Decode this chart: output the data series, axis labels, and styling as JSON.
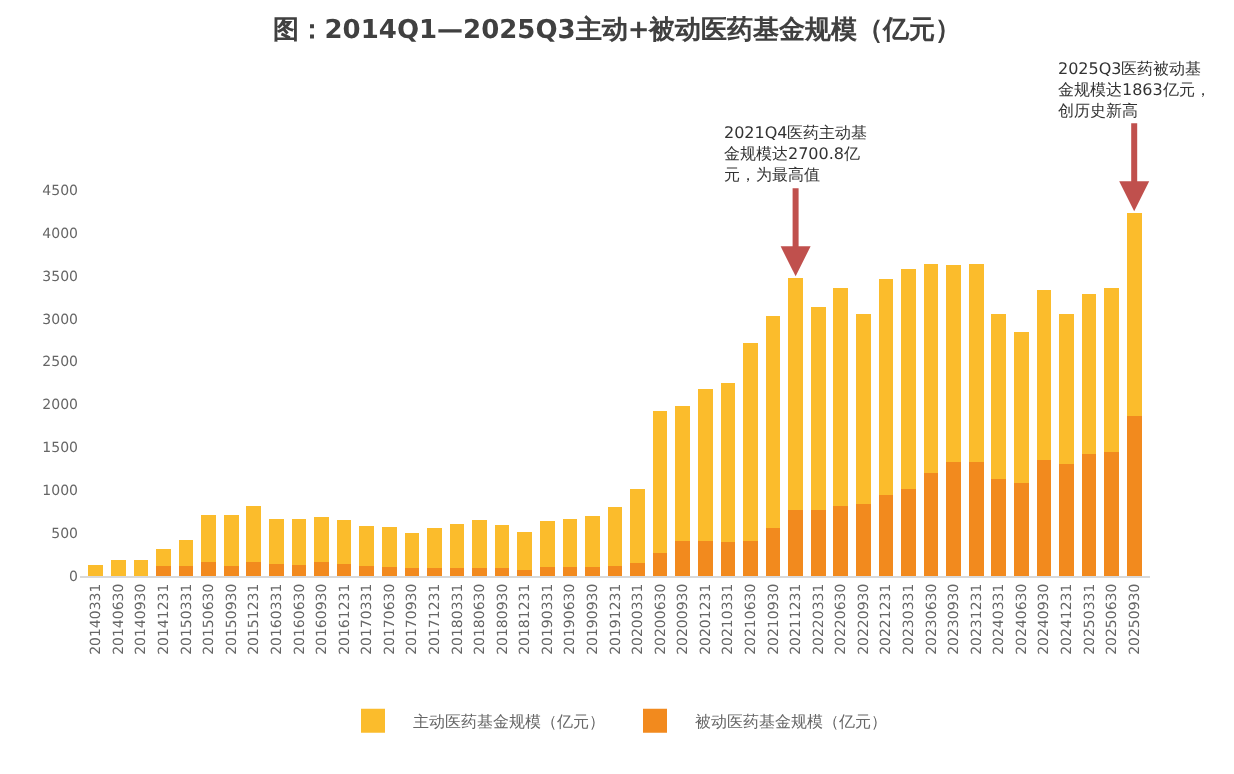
{
  "chart_data": {
    "type": "bar",
    "title": "图：2014Q1—2025Q3主动+被动医药基金规模（亿元）",
    "stacked": true,
    "legend": "bottom",
    "categories": [
      "20140331",
      "20140630",
      "20140930",
      "20141231",
      "20150331",
      "20150630",
      "20150930",
      "20151231",
      "20160331",
      "20160630",
      "20160930",
      "20161231",
      "20170331",
      "20170630",
      "20170930",
      "20171231",
      "20180331",
      "20180630",
      "20180930",
      "20181231",
      "20190331",
      "20190630",
      "20190930",
      "20191231",
      "20200331",
      "20200630",
      "20200930",
      "20201231",
      "20210331",
      "20210630",
      "20210930",
      "20211231",
      "20220331",
      "20220630",
      "20220930",
      "20221231",
      "20230331",
      "20230630",
      "20230930",
      "20231231",
      "20240331",
      "20240630",
      "20240930",
      "20241231",
      "20250331",
      "20250630",
      "20250930"
    ],
    "series": [
      {
        "name": "被动医药基金规模（亿元）",
        "color": "#f28a1e",
        "values": [
          0,
          0,
          0,
          120,
          120,
          160,
          120,
          160,
          140,
          130,
          160,
          140,
          120,
          110,
          90,
          90,
          90,
          90,
          90,
          70,
          100,
          100,
          100,
          120,
          150,
          270,
          410,
          410,
          400,
          410,
          560,
          770,
          770,
          820,
          840,
          950,
          1010,
          1200,
          1330,
          1330,
          1130,
          1080,
          1350,
          1310,
          1420,
          1440,
          1863
        ]
      },
      {
        "name": "主动医药基金规模（亿元）",
        "color": "#fbbc2c",
        "values": [
          130,
          190,
          190,
          190,
          300,
          550,
          590,
          660,
          520,
          530,
          530,
          510,
          460,
          460,
          410,
          470,
          520,
          560,
          500,
          440,
          540,
          570,
          600,
          680,
          870,
          1650,
          1570,
          1770,
          1850,
          2310,
          2470,
          2700.8,
          2370,
          2540,
          2210,
          2510,
          2570,
          2440,
          2290,
          2310,
          1920,
          1760,
          1990,
          1750,
          1870,
          1920,
          2367
        ]
      }
    ],
    "ylim": [
      0,
      4500
    ],
    "yticks": [
      0,
      500,
      1000,
      1500,
      2000,
      2500,
      3000,
      3500,
      4000,
      4500
    ],
    "annotations": [
      {
        "text": "2021Q4医药主动基金规模达2700.8亿元，为最高值",
        "x": "20211231",
        "y": 3470.8
      },
      {
        "text": "2025Q3医药被动基金规模达1863亿元，创历史新高",
        "x": "20250930",
        "y": 4230
      }
    ]
  }
}
